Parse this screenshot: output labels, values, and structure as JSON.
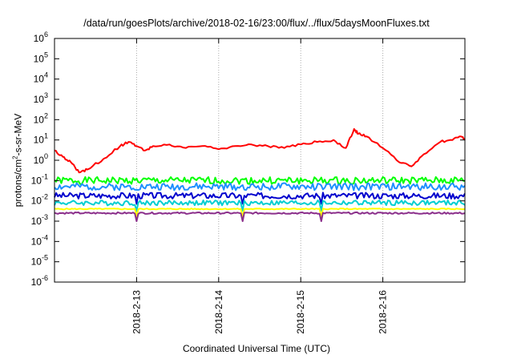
{
  "chart_data": {
    "type": "line",
    "title": "/data/run/goesPlots/archive/2018-02-16/23:00/flux/../flux/5daysMoonFluxes.txt",
    "xlabel": "Coordinated Universal Time (UTC)",
    "ylabel_base": "protons/cm",
    "ylabel_sup": "2",
    "ylabel_rest": "-s-sr-MeV",
    "y_scale": "log",
    "ylim": [
      1e-06,
      1000000.0
    ],
    "x_range_days": [
      "2018-02-12T00:00",
      "2018-02-17T00:00"
    ],
    "grid": "dotted gray",
    "legend": "none",
    "x_ticks": [
      {
        "label": "2018-2-13",
        "day": 1
      },
      {
        "label": "2018-2-14",
        "day": 2
      },
      {
        "label": "2018-2-15",
        "day": 3
      },
      {
        "label": "2018-2-16",
        "day": 4
      }
    ],
    "y_ticks": [
      {
        "base": "10",
        "exp": "6",
        "value": 1000000.0
      },
      {
        "base": "10",
        "exp": "5",
        "value": 100000.0
      },
      {
        "base": "10",
        "exp": "4",
        "value": 10000.0
      },
      {
        "base": "10",
        "exp": "3",
        "value": 1000.0
      },
      {
        "base": "10",
        "exp": "2",
        "value": 100.0
      },
      {
        "base": "10",
        "exp": "1",
        "value": 10.0
      },
      {
        "base": "10",
        "exp": "0",
        "value": 1
      },
      {
        "base": "10",
        "exp": "-1",
        "value": 0.1
      },
      {
        "base": "10",
        "exp": "-2",
        "value": 0.01
      },
      {
        "base": "10",
        "exp": "-3",
        "value": 0.001
      },
      {
        "base": "10",
        "exp": "-4",
        "value": 0.0001
      },
      {
        "base": "10",
        "exp": "-5",
        "value": 1e-05
      },
      {
        "base": "10",
        "exp": "-6",
        "value": 1e-06
      }
    ],
    "series": [
      {
        "color": "#ff0000",
        "x_days": [
          0,
          0.1,
          0.2,
          0.3,
          0.4,
          0.6,
          0.8,
          0.9,
          1.0,
          1.1,
          1.2,
          1.4,
          1.6,
          1.8,
          2.0,
          2.2,
          2.4,
          2.6,
          2.8,
          3.0,
          3.2,
          3.4,
          3.55,
          3.65,
          3.7,
          3.8,
          4.0,
          4.2,
          4.35,
          4.5,
          4.7,
          4.85,
          4.95,
          5.0
        ],
        "values": [
          3,
          1.5,
          0.8,
          0.25,
          0.35,
          1.2,
          5,
          8,
          5,
          3,
          5,
          6,
          4,
          5,
          3.5,
          5,
          6,
          5,
          4,
          6,
          8,
          10,
          4,
          35,
          20,
          15,
          4,
          0.8,
          0.5,
          2,
          8,
          10,
          15,
          10
        ]
      },
      {
        "color": "#00ff00",
        "x_days": [
          0,
          5
        ],
        "values": [
          0.1,
          0.1
        ],
        "base": 0.1,
        "jitter": 0.35,
        "seed": 1
      },
      {
        "color": "#1e90ff",
        "x_days": [
          0,
          5
        ],
        "values": [
          0.05,
          0.05
        ],
        "base": 0.05,
        "jitter": 0.35,
        "seed": 2
      },
      {
        "color": "#0000cd",
        "x_days": [
          0,
          5
        ],
        "values": [
          0.018,
          0.018
        ],
        "base": 0.018,
        "jitter": 0.3,
        "seed": 3
      },
      {
        "color": "#00ced1",
        "x_days": [
          0,
          5
        ],
        "values": [
          0.008,
          0.008
        ],
        "base": 0.008,
        "jitter": 0.25,
        "seed": 4
      },
      {
        "color": "#ffff00",
        "x_days": [
          0,
          5
        ],
        "values": [
          0.004,
          0.004
        ],
        "base": 0.004,
        "jitter": 0.05,
        "seed": 5
      },
      {
        "color": "#8b2f8b",
        "x_days": [
          0,
          5
        ],
        "values": [
          0.0025,
          0.0025
        ],
        "base": 0.0025,
        "jitter": 0.08,
        "seed": 6
      }
    ]
  }
}
